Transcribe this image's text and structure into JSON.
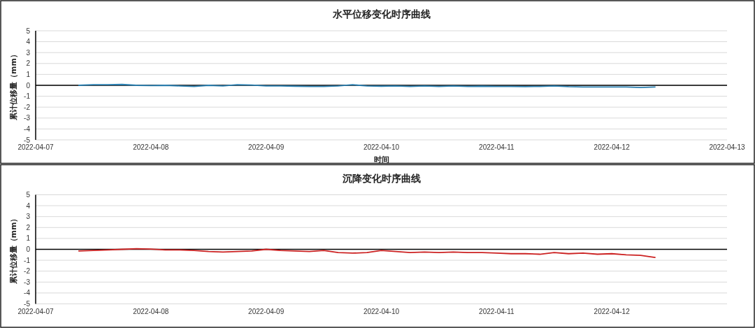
{
  "chart_data": [
    {
      "type": "line",
      "title": "水平位移变化时序曲线",
      "xlabel": "时间",
      "ylabel": "累计位移量（mm）",
      "grid": "y",
      "marker": "none",
      "line_style": "solid",
      "xlim": [
        "2022-04-07",
        "2022-04-13"
      ],
      "xticks": [
        "2022-04-07",
        "2022-04-08",
        "2022-04-09",
        "2022-04-10",
        "2022-04-11",
        "2022-04-12",
        "2022-04-13"
      ],
      "ylim": [
        -5,
        5
      ],
      "yticks": [
        -5,
        -4,
        -3,
        -2,
        -1,
        0,
        1,
        2,
        3,
        4,
        5
      ],
      "x": [
        "2022-04-07T09:00",
        "2022-04-07T12:00",
        "2022-04-07T15:00",
        "2022-04-07T18:00",
        "2022-04-07T21:00",
        "2022-04-08T00:00",
        "2022-04-08T03:00",
        "2022-04-08T06:00",
        "2022-04-08T09:00",
        "2022-04-08T12:00",
        "2022-04-08T15:00",
        "2022-04-08T18:00",
        "2022-04-08T21:00",
        "2022-04-09T00:00",
        "2022-04-09T03:00",
        "2022-04-09T06:00",
        "2022-04-09T09:00",
        "2022-04-09T12:00",
        "2022-04-09T15:00",
        "2022-04-09T18:00",
        "2022-04-09T21:00",
        "2022-04-10T00:00",
        "2022-04-10T03:00",
        "2022-04-10T06:00",
        "2022-04-10T09:00",
        "2022-04-10T12:00",
        "2022-04-10T15:00",
        "2022-04-10T18:00",
        "2022-04-10T21:00",
        "2022-04-11T00:00",
        "2022-04-11T03:00",
        "2022-04-11T06:00",
        "2022-04-11T09:00",
        "2022-04-11T12:00",
        "2022-04-11T15:00",
        "2022-04-11T18:00",
        "2022-04-11T21:00",
        "2022-04-12T00:00",
        "2022-04-12T03:00",
        "2022-04-12T06:00",
        "2022-04-12T09:00"
      ],
      "series": [
        {
          "color": "#2a7fb0",
          "values": [
            0.0,
            0.05,
            0.05,
            0.08,
            0.0,
            -0.02,
            0.0,
            -0.05,
            -0.1,
            0.0,
            -0.05,
            0.05,
            0.02,
            -0.05,
            -0.05,
            -0.08,
            -0.1,
            -0.1,
            -0.05,
            0.05,
            -0.05,
            -0.08,
            -0.05,
            -0.1,
            -0.05,
            -0.1,
            -0.05,
            -0.1,
            -0.08,
            -0.1,
            -0.1,
            -0.12,
            -0.1,
            -0.05,
            -0.12,
            -0.15,
            -0.15,
            -0.15,
            -0.15,
            -0.2,
            -0.15
          ]
        }
      ]
    },
    {
      "type": "line",
      "title": "沉降变化时序曲线",
      "ylabel": "累计位移量（mm）",
      "grid": "y",
      "marker": "none",
      "line_style": "solid",
      "xlim": [
        "2022-04-07",
        "2022-04-13"
      ],
      "xticks": [
        "2022-04-07",
        "2022-04-08",
        "2022-04-09",
        "2022-04-10",
        "2022-04-11",
        "2022-04-12"
      ],
      "ylim": [
        -5,
        5
      ],
      "yticks": [
        -5,
        -4,
        -3,
        -2,
        -1,
        0,
        1,
        2,
        3,
        4,
        5
      ],
      "x": [
        "2022-04-07T09:00",
        "2022-04-07T12:00",
        "2022-04-07T15:00",
        "2022-04-07T18:00",
        "2022-04-07T21:00",
        "2022-04-08T00:00",
        "2022-04-08T03:00",
        "2022-04-08T06:00",
        "2022-04-08T09:00",
        "2022-04-08T12:00",
        "2022-04-08T15:00",
        "2022-04-08T18:00",
        "2022-04-08T21:00",
        "2022-04-09T00:00",
        "2022-04-09T03:00",
        "2022-04-09T06:00",
        "2022-04-09T09:00",
        "2022-04-09T12:00",
        "2022-04-09T15:00",
        "2022-04-09T18:00",
        "2022-04-09T21:00",
        "2022-04-10T00:00",
        "2022-04-10T03:00",
        "2022-04-10T06:00",
        "2022-04-10T09:00",
        "2022-04-10T12:00",
        "2022-04-10T15:00",
        "2022-04-10T18:00",
        "2022-04-10T21:00",
        "2022-04-11T00:00",
        "2022-04-11T03:00",
        "2022-04-11T06:00",
        "2022-04-11T09:00",
        "2022-04-11T12:00",
        "2022-04-11T15:00",
        "2022-04-11T18:00",
        "2022-04-11T21:00",
        "2022-04-12T00:00",
        "2022-04-12T03:00",
        "2022-04-12T06:00",
        "2022-04-12T09:00"
      ],
      "series": [
        {
          "color": "#cc2222",
          "values": [
            -0.15,
            -0.1,
            -0.05,
            0.0,
            0.05,
            0.02,
            -0.05,
            -0.05,
            -0.1,
            -0.2,
            -0.25,
            -0.2,
            -0.15,
            0.0,
            -0.1,
            -0.15,
            -0.2,
            -0.1,
            -0.3,
            -0.35,
            -0.3,
            -0.1,
            -0.2,
            -0.3,
            -0.25,
            -0.3,
            -0.25,
            -0.3,
            -0.3,
            -0.35,
            -0.4,
            -0.4,
            -0.45,
            -0.3,
            -0.4,
            -0.35,
            -0.45,
            -0.4,
            -0.5,
            -0.55,
            -0.75
          ]
        }
      ]
    }
  ]
}
